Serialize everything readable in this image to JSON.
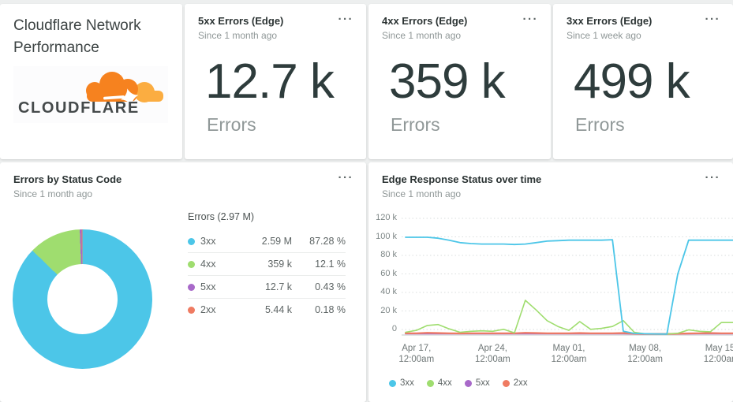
{
  "ui": {
    "menu_glyph": "···"
  },
  "header_card": {
    "title": "Cloudflare Network Performance",
    "logo_text": "CLOUDFLARE"
  },
  "kpi_cards": [
    {
      "title": "5xx Errors (Edge)",
      "subtitle": "Since 1 month ago",
      "value": "12.7 k",
      "unit": "Errors"
    },
    {
      "title": "4xx Errors (Edge)",
      "subtitle": "Since 1 month ago",
      "value": "359 k",
      "unit": "Errors"
    },
    {
      "title": "3xx Errors (Edge)",
      "subtitle": "Since 1 week ago",
      "value": "499 k",
      "unit": "Errors"
    }
  ],
  "pie_card": {
    "title": "Errors by Status Code",
    "subtitle": "Since 1 month ago"
  },
  "line_card": {
    "title": "Edge Response Status over time",
    "subtitle": "Since 1 month ago"
  },
  "chart_data": [
    {
      "type": "pie",
      "subtype": "donut",
      "title": "Errors by Status Code",
      "timeframe": "Since 1 month ago",
      "total_label": "Errors (2.97 M)",
      "slices": [
        {
          "label": "3xx",
          "value": 2590000,
          "value_label": "2.59 M",
          "percent": 87.28,
          "percent_label": "87.28 %",
          "color": "#4cc6e8"
        },
        {
          "label": "4xx",
          "value": 359000,
          "value_label": "359 k",
          "percent": 12.1,
          "percent_label": "12.1 %",
          "color": "#9fdd6f"
        },
        {
          "label": "5xx",
          "value": 12700,
          "value_label": "12.7 k",
          "percent": 0.43,
          "percent_label": "0.43 %",
          "color": "#a869c9"
        },
        {
          "label": "2xx",
          "value": 5440,
          "value_label": "5.44 k",
          "percent": 0.18,
          "percent_label": "0.18 %",
          "color": "#ef7b62"
        }
      ]
    },
    {
      "type": "line",
      "title": "Edge Response Status over time",
      "timeframe": "Since 1 month ago",
      "y_unit": "thousands of errors",
      "ylim": [
        0,
        125
      ],
      "grid": "dotted horizontal",
      "legend_position": "bottom",
      "y_ticks": [
        {
          "v": 0,
          "label": "0"
        },
        {
          "v": 20,
          "label": "20 k"
        },
        {
          "v": 40,
          "label": "40 k"
        },
        {
          "v": 60,
          "label": "60 k"
        },
        {
          "v": 80,
          "label": "80 k"
        },
        {
          "v": 100,
          "label": "100 k"
        },
        {
          "v": 120,
          "label": "120 k"
        }
      ],
      "x_ticks": [
        {
          "index": 1,
          "line1": "Apr 17,",
          "line2": "12:00am"
        },
        {
          "index": 8,
          "line1": "Apr 24,",
          "line2": "12:00am"
        },
        {
          "index": 15,
          "line1": "May 01,",
          "line2": "12:00am"
        },
        {
          "index": 22,
          "line1": "May 08,",
          "line2": "12:00am"
        },
        {
          "index": 29,
          "line1": "May 15,",
          "line2": "12:00am"
        }
      ],
      "series": [
        {
          "name": "3xx",
          "color": "#4cc6e8",
          "values": [
            100,
            100,
            100,
            99,
            97,
            94.5,
            93.5,
            93,
            93,
            93,
            92.5,
            93,
            94.5,
            96,
            96.5,
            97,
            97,
            97,
            97,
            97.5,
            3,
            0.8,
            0.5,
            0.3,
            0.2,
            62,
            97,
            97,
            97,
            97
          ]
        },
        {
          "name": "4xx",
          "color": "#9fdd6f",
          "values": [
            2,
            4,
            9,
            10,
            5.5,
            2,
            3,
            3.5,
            3,
            5,
            1.5,
            35,
            25,
            14,
            8,
            4,
            13,
            5,
            6,
            8,
            14,
            2,
            0.4,
            0.2,
            0.2,
            1,
            4.5,
            3,
            2.5,
            12
          ]
        },
        {
          "name": "5xx",
          "color": "#a869c9",
          "values": [
            0.4,
            0.4,
            0.4,
            0.4,
            0.4,
            0.4,
            0.4,
            0.4,
            0.4,
            0.4,
            0.4,
            0.4,
            0.4,
            0.4,
            0.4,
            0.4,
            0.4,
            0.4,
            0.4,
            0.4,
            0.4,
            0.2,
            0.1,
            0.1,
            0.1,
            0.2,
            0.3,
            0.4,
            0.4,
            0.4
          ]
        },
        {
          "name": "2xx",
          "color": "#ef7b62",
          "values": [
            1,
            1,
            1.5,
            1.2,
            1,
            0.8,
            1,
            1,
            1,
            1,
            1,
            1.5,
            1.2,
            1,
            1,
            1,
            1.2,
            1,
            1,
            1,
            1.2,
            0.5,
            0.3,
            0.3,
            0.3,
            0.5,
            0.8,
            1,
            1.2,
            1
          ]
        }
      ]
    }
  ]
}
